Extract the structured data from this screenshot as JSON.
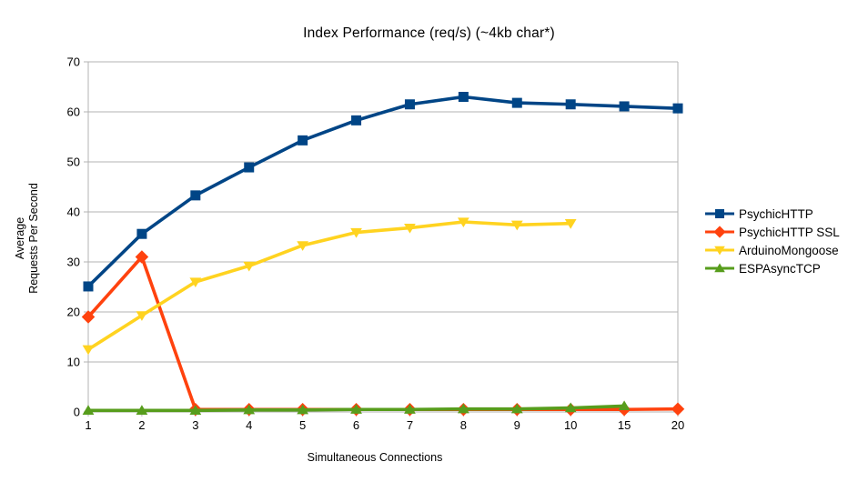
{
  "chart_data": {
    "type": "line",
    "title": "Index Performance (req/s) (~4kb char*)",
    "xlabel": "Simultaneous Connections",
    "ylabel_lines": [
      "Average",
      "Requests Per Second"
    ],
    "categories": [
      "1",
      "2",
      "3",
      "4",
      "5",
      "6",
      "7",
      "8",
      "9",
      "10",
      "15",
      "20"
    ],
    "y_ticks": [
      0,
      10,
      20,
      30,
      40,
      50,
      60,
      70
    ],
    "ylim": [
      0,
      70
    ],
    "grid": true,
    "legend_position": "right",
    "series": [
      {
        "name": "PsychicHTTP",
        "color": "#004586",
        "marker": "square",
        "values": [
          25.1,
          35.6,
          43.3,
          48.9,
          54.3,
          58.3,
          61.5,
          63.0,
          61.8,
          61.5,
          61.1,
          60.7
        ]
      },
      {
        "name": "PsychicHTTP SSL",
        "color": "#FF420E",
        "marker": "diamond",
        "values": [
          19.0,
          31.0,
          0.5,
          0.5,
          0.5,
          0.5,
          0.5,
          0.5,
          0.5,
          0.5,
          0.5,
          0.6
        ]
      },
      {
        "name": "ArduinoMongoose",
        "color": "#FFD320",
        "marker": "triangle-down",
        "values": [
          12.5,
          19.3,
          26.0,
          29.2,
          33.3,
          35.9,
          36.8,
          38.0,
          37.4,
          37.7,
          null,
          null
        ]
      },
      {
        "name": "ESPAsyncTCP",
        "color": "#579D1C",
        "marker": "triangle-up",
        "values": [
          0.3,
          0.3,
          0.3,
          0.4,
          0.4,
          0.5,
          0.5,
          0.6,
          0.6,
          0.8,
          1.2,
          null
        ]
      }
    ]
  },
  "colors": {
    "background": "#ffffff",
    "grid": "#b3b3b3",
    "axis": "#b3b3b3",
    "text": "#000000"
  }
}
